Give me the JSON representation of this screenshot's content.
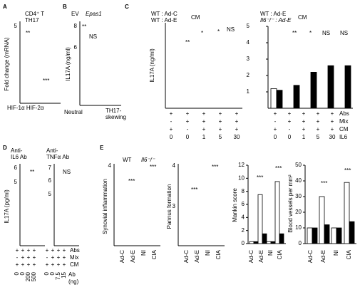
{
  "figure": {
    "a": {
      "label": "A",
      "legend": [
        "CD4⁺ T",
        "TH17"
      ],
      "y_label": "Fold change (mRNA)",
      "yticks": [
        5
      ],
      "annotations": [
        "**",
        "***"
      ],
      "x_label": "HIF-1α HIF-2α"
    },
    "b": {
      "label": "B",
      "legend": [
        "EV",
        "Epas1"
      ],
      "y_label": "IL17A (ng/ml)",
      "yticks": [
        8,
        6
      ],
      "annotations": [
        "**",
        "NS"
      ],
      "categories": [
        [
          "Neutral"
        ],
        [
          "TH17-",
          "skewing"
        ]
      ]
    },
    "c": {
      "label": "C",
      "left": {
        "legend": [
          "WT : Ad-C",
          "WT : Ad-E",
          "CM"
        ],
        "y_label": "IL17A (ng/ml)",
        "annotations": [
          "**",
          "*",
          "*",
          "NS"
        ]
      },
      "right": {
        "legend": [
          "WT : Ad-E",
          "Il6⁻/⁻ : Ad-E",
          "CM"
        ],
        "ylim": [
          0,
          5
        ],
        "yticks": [
          1,
          2,
          3,
          4,
          5
        ],
        "annotations": [
          "**",
          "*",
          "NS",
          "NS"
        ],
        "series": [
          {
            "color": "#ffffff",
            "values": [
              1.2,
              null,
              null,
              null,
              null
            ]
          },
          {
            "color": "#000000",
            "values": [
              1.1,
              1.4,
              2.2,
              2.6,
              2.6
            ]
          }
        ]
      },
      "matrix": {
        "rows": [
          {
            "label": "Abs",
            "left": [
              "+",
              "+",
              "+",
              "+",
              "+"
            ],
            "right": [
              "+",
              "+",
              "+",
              "+",
              "+"
            ]
          },
          {
            "label": "Mix",
            "left": [
              "-",
              "+",
              "+",
              "+",
              "+"
            ],
            "right": [
              "-",
              "+",
              "+",
              "+",
              "+"
            ]
          },
          {
            "label": "CM",
            "left": [
              "+",
              "-",
              "+",
              "+",
              "+"
            ],
            "right": [
              "+",
              "-",
              "+",
              "+",
              "+"
            ]
          },
          {
            "label": "IL6",
            "left": [
              0,
              0,
              1,
              5,
              30
            ],
            "right": [
              0,
              0,
              1,
              5,
              30
            ]
          }
        ]
      }
    },
    "d": {
      "label": "D",
      "y_label": "IL17A (pg/ml)",
      "groups": [
        {
          "title": [
            "Anti-",
            "IL6 Ab"
          ],
          "yticks": [
            6,
            5
          ],
          "annotation": "**"
        },
        {
          "title": [
            "Anti-",
            "TNFα Ab"
          ],
          "yticks": [
            7,
            6,
            5
          ],
          "annotation": "NS"
        }
      ],
      "matrix": {
        "rows": [
          {
            "label": "Abs",
            "left": [
              "+",
              "+",
              "+",
              "+"
            ],
            "right": [
              "+",
              "+",
              "+",
              "+"
            ]
          },
          {
            "label": "Mix",
            "left": [
              "-",
              "+",
              "+",
              "+"
            ],
            "right": [
              "-",
              "+",
              "+",
              "+"
            ]
          },
          {
            "label": "CM",
            "left": [
              "+",
              "+",
              "+",
              "+"
            ],
            "right": [
              "+",
              "+",
              "+",
              "+"
            ]
          }
        ],
        "doses": {
          "label": [
            "Ab",
            "(ng)"
          ],
          "left": [
            0,
            0,
            200,
            500
          ],
          "right": [
            0,
            0,
            7.5,
            15
          ]
        }
      }
    },
    "e": {
      "label": "E",
      "legend": [
        "WT",
        "Il6⁻/⁻"
      ],
      "categories": [
        "Ad-C",
        "Ad-E",
        "NI",
        "CIA"
      ],
      "synovial": {
        "y_label": "Synovial inflammation",
        "yticks": [
          4
        ],
        "annotations": [
          "***",
          "***"
        ]
      },
      "pannus": {
        "y_label": "Pannus formation",
        "yticks": [
          4,
          3
        ],
        "annotations": [
          "***",
          "***"
        ]
      },
      "mankin": {
        "y_label": "Mankin score",
        "ylim": [
          0,
          12
        ],
        "yticks": [
          0,
          2,
          4,
          6,
          8,
          10,
          12
        ],
        "annotations": [
          "***",
          "***"
        ],
        "series": [
          {
            "color": "#ffffff",
            "values": [
              0.3,
              7.5,
              0.3,
              9.5
            ]
          },
          {
            "color": "#000000",
            "values": [
              0.3,
              1.5,
              0.3,
              1.5
            ]
          }
        ]
      },
      "blood": {
        "y_label": "Blood vessels per mm²",
        "ylim": [
          0,
          50
        ],
        "yticks": [
          0,
          10,
          20,
          30,
          40,
          50
        ],
        "annotations": [
          "***",
          "***"
        ],
        "series": [
          {
            "color": "#ffffff",
            "values": [
              10,
              30,
              10,
              39
            ]
          },
          {
            "color": "#000000",
            "values": [
              10,
              12,
              10,
              14
            ]
          }
        ]
      }
    }
  }
}
